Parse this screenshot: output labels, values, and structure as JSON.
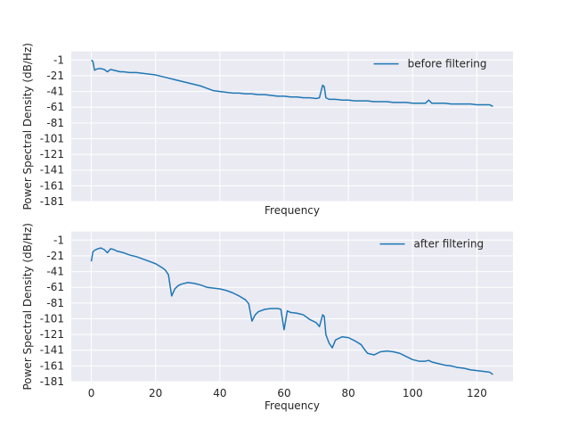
{
  "figure": {
    "background": "#ffffff",
    "axes_bg": "#eaeaf2",
    "grid_color": "#ffffff",
    "line_color": "#1f77b4",
    "text_color": "#262626"
  },
  "chart_data": [
    {
      "type": "line",
      "xlabel": "Frequency",
      "ylabel": "Power Spectral Density (dB/Hz)",
      "xlim": [
        -6.25,
        131.25
      ],
      "ylim": [
        -181,
        10
      ],
      "yticks": [
        -1,
        -21,
        -41,
        -61,
        -81,
        -101,
        -121,
        -141,
        -161,
        -181
      ],
      "xticks": [
        0,
        20,
        40,
        60,
        80,
        100,
        120
      ],
      "show_xticklabels": false,
      "grid": true,
      "legend_position": "upper right",
      "series": [
        {
          "name": "before filtering",
          "x": [
            0,
            0.5,
            1,
            1.5,
            2,
            3,
            4,
            5,
            6,
            7,
            8,
            9,
            10,
            12,
            14,
            16,
            18,
            20,
            22,
            24,
            26,
            28,
            30,
            32,
            34,
            36,
            38,
            40,
            42,
            44,
            46,
            48,
            50,
            52,
            54,
            56,
            58,
            60,
            62,
            64,
            66,
            68,
            70,
            71,
            72,
            72.5,
            73,
            74,
            76,
            78,
            80,
            82,
            84,
            86,
            88,
            90,
            92,
            94,
            96,
            98,
            100,
            102,
            104,
            105,
            106,
            108,
            110,
            112,
            114,
            116,
            118,
            120,
            122,
            124,
            125
          ],
          "y": [
            -1,
            -3,
            -14,
            -13,
            -12,
            -12,
            -13,
            -16,
            -13,
            -14,
            -15,
            -16,
            -16,
            -17,
            -17,
            -18,
            -19,
            -20,
            -22,
            -24,
            -26,
            -28,
            -30,
            -32,
            -34,
            -37,
            -40,
            -41,
            -42,
            -43,
            -43,
            -44,
            -44,
            -45,
            -45,
            -46,
            -47,
            -47,
            -48,
            -48,
            -49,
            -49,
            -50,
            -49,
            -33,
            -35,
            -49,
            -51,
            -51,
            -52,
            -52,
            -53,
            -53,
            -53,
            -54,
            -54,
            -54,
            -55,
            -55,
            -55,
            -56,
            -56,
            -56,
            -52,
            -56,
            -56,
            -56,
            -57,
            -57,
            -57,
            -57,
            -58,
            -58,
            -58,
            -60
          ]
        }
      ]
    },
    {
      "type": "line",
      "xlabel": "Frequency",
      "ylabel": "Power Spectral Density (dB/Hz)",
      "xlim": [
        -6.25,
        131.25
      ],
      "ylim": [
        -181,
        10
      ],
      "yticks": [
        -1,
        -21,
        -41,
        -61,
        -81,
        -101,
        -121,
        -141,
        -161,
        -181
      ],
      "xticks": [
        0,
        20,
        40,
        60,
        80,
        100,
        120
      ],
      "show_xticklabels": true,
      "grid": true,
      "legend_position": "upper right",
      "series": [
        {
          "name": "after filtering",
          "x": [
            0,
            0.5,
            1,
            2,
            3,
            4,
            5,
            6,
            7,
            8,
            10,
            12,
            14,
            16,
            18,
            20,
            22,
            23,
            24,
            25,
            26,
            27,
            28,
            30,
            32,
            34,
            36,
            38,
            40,
            42,
            44,
            46,
            48,
            49,
            50,
            51,
            52,
            54,
            56,
            58,
            59,
            60,
            61,
            62,
            64,
            66,
            68,
            70,
            71,
            72,
            72.5,
            73,
            74,
            75,
            76,
            78,
            80,
            82,
            84,
            85,
            86,
            88,
            90,
            92,
            94,
            96,
            98,
            100,
            102,
            104,
            105,
            106,
            108,
            110,
            112,
            114,
            116,
            118,
            120,
            122,
            124,
            125
          ],
          "y": [
            -28,
            -16,
            -14,
            -12,
            -11,
            -13,
            -17,
            -12,
            -13,
            -15,
            -17,
            -20,
            -22,
            -25,
            -28,
            -31,
            -36,
            -39,
            -45,
            -72,
            -63,
            -59,
            -57,
            -55,
            -56,
            -58,
            -61,
            -62,
            -63,
            -65,
            -68,
            -72,
            -77,
            -82,
            -104,
            -96,
            -92,
            -89,
            -88,
            -88,
            -89,
            -115,
            -91,
            -93,
            -94,
            -96,
            -102,
            -106,
            -111,
            -96,
            -98,
            -121,
            -132,
            -138,
            -128,
            -124,
            -125,
            -129,
            -134,
            -140,
            -145,
            -147,
            -143,
            -142,
            -143,
            -145,
            -149,
            -153,
            -155,
            -155,
            -154,
            -156,
            -158,
            -160,
            -161,
            -163,
            -164,
            -166,
            -167,
            -168,
            -169,
            -172
          ]
        }
      ]
    }
  ]
}
